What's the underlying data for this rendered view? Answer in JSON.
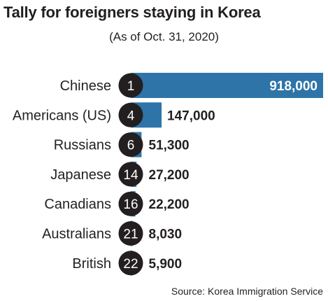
{
  "chart_data": {
    "type": "bar",
    "orientation": "horizontal",
    "title": "Tally for foreigners staying in Korea",
    "subtitle": "(As of Oct. 31, 2020)",
    "categories": [
      "Chinese",
      "Americans (US)",
      "Russians",
      "Japanese",
      "Canadians",
      "Australians",
      "British"
    ],
    "ranks": [
      "1",
      "4",
      "6",
      "14",
      "16",
      "21",
      "22"
    ],
    "values": [
      918000,
      147000,
      51300,
      27200,
      22200,
      8030,
      5900
    ],
    "value_labels": [
      "918,000",
      "147,000",
      "51,300",
      "27,200",
      "22,200",
      "8,030",
      "5,900"
    ],
    "xlim": [
      0,
      918000
    ],
    "grid": false,
    "legend": "none",
    "bar_color": "#2e74a8",
    "rank_circle_color": "#231f20",
    "inside_label_color": "#ffffff",
    "text_color": "#231f20",
    "source": "Source: Korea Immigration Service"
  }
}
